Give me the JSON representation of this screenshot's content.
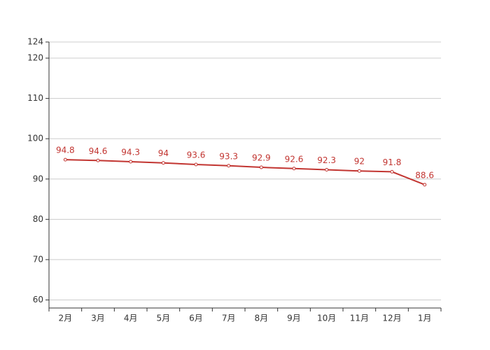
{
  "chart_data": {
    "type": "line",
    "categories": [
      "2月",
      "3月",
      "4月",
      "5月",
      "6月",
      "7月",
      "8月",
      "9月",
      "10月",
      "11月",
      "12月",
      "1月"
    ],
    "series": [
      {
        "color": "#c23531",
        "values": [
          94.8,
          94.6,
          94.3,
          94,
          93.6,
          93.3,
          92.9,
          92.6,
          92.3,
          92,
          91.8,
          88.6
        ]
      }
    ],
    "ylim": [
      58,
      124
    ],
    "yticks": [
      60,
      70,
      80,
      90,
      100,
      110,
      120,
      124
    ],
    "grid": true
  }
}
